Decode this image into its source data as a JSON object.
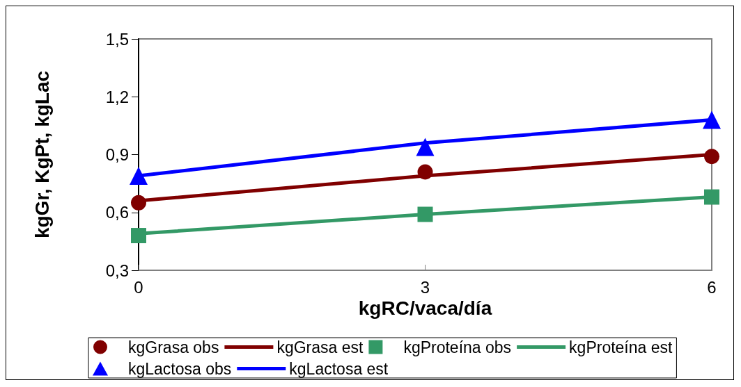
{
  "chart_data": {
    "type": "line",
    "xlabel": "kgRC/vaca/día",
    "ylabel": "kgGr, KgPt, kgLac",
    "x": [
      0,
      3,
      6
    ],
    "xlim": [
      0,
      6
    ],
    "xticks": [
      0,
      3,
      6
    ],
    "ylim": [
      0.3,
      1.5
    ],
    "yticks": [
      {
        "value": 0.3,
        "label": "0,3"
      },
      {
        "value": 0.6,
        "label": "0,6"
      },
      {
        "value": 0.9,
        "label": "0,9"
      },
      {
        "value": 1.2,
        "label": "1,2"
      },
      {
        "value": 1.5,
        "label": "1,5"
      }
    ],
    "grid": false,
    "legend": "bottom",
    "series": [
      {
        "name": "kgGrasa obs",
        "type": "scatter",
        "marker": "circle",
        "color": "#800000",
        "values": [
          0.65,
          0.81,
          0.89
        ]
      },
      {
        "name": "kgGrasa est",
        "type": "line",
        "marker": "none",
        "line_style": "solid",
        "color": "#800000",
        "values": [
          0.66,
          0.79,
          0.9
        ]
      },
      {
        "name": "kgProteína obs",
        "type": "scatter",
        "marker": "square",
        "color": "#339966",
        "values": [
          0.48,
          0.59,
          0.68
        ]
      },
      {
        "name": "kgProteína est",
        "type": "line",
        "marker": "none",
        "line_style": "solid",
        "color": "#339966",
        "values": [
          0.49,
          0.59,
          0.68
        ]
      },
      {
        "name": "kgLactosa obs",
        "type": "scatter",
        "marker": "triangle",
        "color": "#0000ff",
        "values": [
          0.79,
          0.94,
          1.08
        ]
      },
      {
        "name": "kgLactosa est",
        "type": "line",
        "marker": "none",
        "line_style": "solid",
        "color": "#0000ff",
        "values": [
          0.79,
          0.96,
          1.08
        ]
      }
    ]
  }
}
